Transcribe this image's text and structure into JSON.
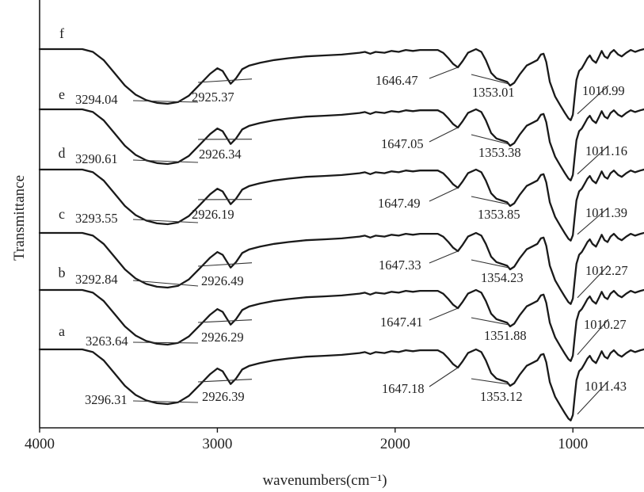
{
  "chart_data": {
    "type": "line",
    "title": "",
    "xlabel": "wavenumbers(cm⁻¹)",
    "ylabel": "Transmittance",
    "xlim": [
      4000,
      600
    ],
    "x_ticks": [
      4000,
      3000,
      2000,
      1000
    ],
    "x_tick_labels": [
      "4000",
      "3000",
      "2000",
      "1000"
    ],
    "grid": false,
    "legend": "none",
    "series": [
      {
        "name": "f",
        "peaks": [
          "3294.04",
          "2925.37",
          "1646.47",
          "1353.01",
          "1010.99"
        ]
      },
      {
        "name": "e",
        "peaks": [
          "3290.61",
          "2926.34",
          "1647.05",
          "1353.38",
          "1011.16"
        ]
      },
      {
        "name": "d",
        "peaks": [
          "3293.55",
          "2926.19",
          "1647.49",
          "1353.85",
          "1011.39"
        ]
      },
      {
        "name": "c",
        "peaks": [
          "3292.84",
          "2926.49",
          "1647.33",
          "1354.23",
          "1012.27"
        ]
      },
      {
        "name": "b",
        "peaks": [
          "3263.64",
          "2926.29",
          "1647.41",
          "1351.88",
          "1010.27"
        ]
      },
      {
        "name": "a",
        "peaks": [
          "3296.31",
          "2926.39",
          "1647.18",
          "1353.12",
          "1011.43"
        ]
      }
    ]
  }
}
